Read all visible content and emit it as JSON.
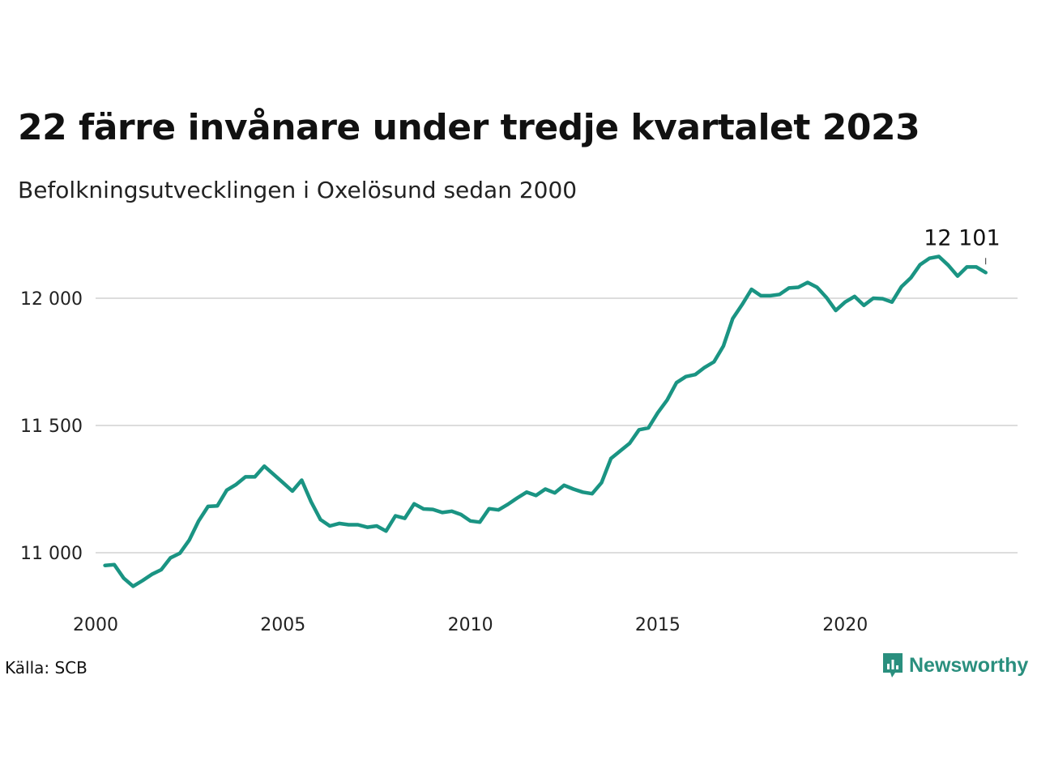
{
  "title": "22 färre invånare under tredje kvartalet 2023",
  "subtitle": "Befolkningsutvecklingen i Oxelösund sedan 2000",
  "source": "Källa: SCB",
  "brand": {
    "name": "Newsworthy",
    "color": "#2a8f7e",
    "icon": "newsworthy-logo-icon"
  },
  "chart_data": {
    "type": "line",
    "title": "22 färre invånare under tredje kvartalet 2023",
    "xlabel": "",
    "ylabel": "",
    "ylim": [
      10800,
      12200
    ],
    "xlim": [
      2000,
      2024.6
    ],
    "yticks": [
      11000,
      11500,
      12000
    ],
    "ytick_labels": [
      "11 000",
      "11 500",
      "12 000"
    ],
    "xticks": [
      2000,
      2005,
      2010,
      2015,
      2020
    ],
    "xtick_labels": [
      "2000",
      "2005",
      "2010",
      "2015",
      "2020"
    ],
    "grid": "horizontal",
    "line_color": "#1a9483",
    "end_label": "12 101",
    "series": [
      {
        "x": [
          2000.25,
          2000.5,
          2000.75,
          2001.0,
          2001.25,
          2001.5,
          2001.75,
          2002.0,
          2002.25,
          2002.5,
          2002.75,
          2003.0,
          2003.25,
          2003.5,
          2003.75,
          2004.0,
          2004.25,
          2004.5,
          2004.75,
          2005.0,
          2005.25,
          2005.5,
          2005.75,
          2006.0,
          2006.25,
          2006.5,
          2006.75,
          2007.0,
          2007.25,
          2007.5,
          2007.75,
          2008.0,
          2008.25,
          2008.5,
          2008.75,
          2009.0,
          2009.25,
          2009.5,
          2009.75,
          2010.0,
          2010.25,
          2010.5,
          2010.75,
          2011.0,
          2011.25,
          2011.5,
          2011.75,
          2012.0,
          2012.25,
          2012.5,
          2012.75,
          2013.0,
          2013.25,
          2013.5,
          2013.75,
          2014.0,
          2014.25,
          2014.5,
          2014.75,
          2015.0,
          2015.25,
          2015.5,
          2015.75,
          2016.0,
          2016.25,
          2016.5,
          2016.75,
          2017.0,
          2017.25,
          2017.5,
          2017.75,
          2018.0,
          2018.25,
          2018.5,
          2018.75,
          2019.0,
          2019.25,
          2019.5,
          2019.75,
          2020.0,
          2020.25,
          2020.5,
          2020.75,
          2021.0,
          2021.25,
          2021.5,
          2021.75,
          2022.0,
          2022.25,
          2022.5,
          2022.75,
          2023.0,
          2023.25,
          2023.5,
          2023.75
        ],
        "y": [
          10950,
          10953,
          10900,
          10868,
          10890,
          10915,
          10933,
          10980,
          10998,
          11050,
          11125,
          11182,
          11184,
          11246,
          11268,
          11298,
          11298,
          11340,
          11308,
          11275,
          11242,
          11285,
          11200,
          11130,
          11105,
          11115,
          11110,
          11110,
          11100,
          11105,
          11085,
          11145,
          11135,
          11192,
          11172,
          11170,
          11158,
          11163,
          11150,
          11125,
          11120,
          11173,
          11168,
          11190,
          11215,
          11238,
          11225,
          11250,
          11235,
          11265,
          11250,
          11238,
          11232,
          11275,
          11370,
          11400,
          11430,
          11483,
          11490,
          11550,
          11600,
          11668,
          11692,
          11700,
          11728,
          11750,
          11812,
          11920,
          11975,
          12035,
          12010,
          12010,
          12015,
          12040,
          12043,
          12062,
          12043,
          12003,
          11952,
          11985,
          12007,
          11972,
          12000,
          11998,
          11985,
          12045,
          12080,
          12132,
          12157,
          12164,
          12130,
          12087,
          12123,
          12123,
          12101
        ]
      }
    ]
  }
}
